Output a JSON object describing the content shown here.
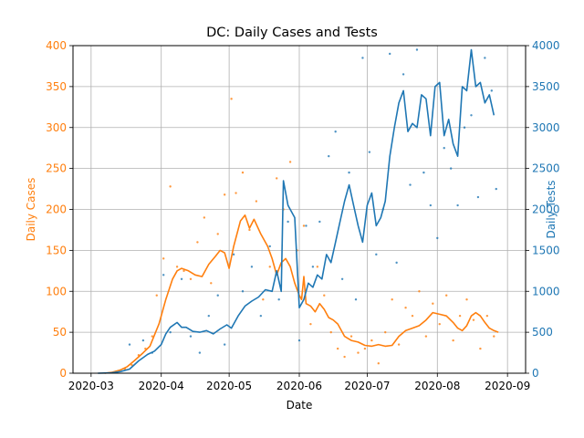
{
  "chart_data": {
    "type": "line",
    "title": "DC: Daily Cases and Tests",
    "xlabel": "Date",
    "ylabel_left": "Daily Cases",
    "ylabel_right": "Daily Tests",
    "x_ticks": [
      "2020-03",
      "2020-04",
      "2020-05",
      "2020-06",
      "2020-07",
      "2020-08",
      "2020-09"
    ],
    "x_range": [
      "2020-02-22",
      "2020-09-09"
    ],
    "ylim_left": [
      0,
      400
    ],
    "ylim_right": [
      0,
      4000
    ],
    "yticks_left": [
      0,
      50,
      100,
      150,
      200,
      250,
      300,
      350,
      400
    ],
    "yticks_right": [
      0,
      500,
      1000,
      1500,
      2000,
      2500,
      3000,
      3500,
      4000
    ],
    "grid": true,
    "colors": {
      "cases": "#ff7f0e",
      "tests": "#1f77b4"
    },
    "series": [
      {
        "axis": "left",
        "style": "smoothed line with daily scatter",
        "smoothed": [
          [
            "2020-03-07",
            0
          ],
          [
            "2020-03-10",
            1
          ],
          [
            "2020-03-14",
            4
          ],
          [
            "2020-03-17",
            8
          ],
          [
            "2020-03-20",
            15
          ],
          [
            "2020-03-24",
            25
          ],
          [
            "2020-03-27",
            33
          ],
          [
            "2020-03-31",
            60
          ],
          [
            "2020-04-03",
            90
          ],
          [
            "2020-04-06",
            115
          ],
          [
            "2020-04-08",
            125
          ],
          [
            "2020-04-10",
            128
          ],
          [
            "2020-04-13",
            125
          ],
          [
            "2020-04-16",
            120
          ],
          [
            "2020-04-19",
            118
          ],
          [
            "2020-04-22",
            133
          ],
          [
            "2020-04-25",
            143
          ],
          [
            "2020-04-27",
            150
          ],
          [
            "2020-04-29",
            147
          ],
          [
            "2020-05-01",
            128
          ],
          [
            "2020-05-03",
            155
          ],
          [
            "2020-05-06",
            186
          ],
          [
            "2020-05-08",
            193
          ],
          [
            "2020-05-10",
            177
          ],
          [
            "2020-05-12",
            188
          ],
          [
            "2020-05-15",
            170
          ],
          [
            "2020-05-18",
            155
          ],
          [
            "2020-05-20",
            140
          ],
          [
            "2020-05-22",
            120
          ],
          [
            "2020-05-24",
            135
          ],
          [
            "2020-05-26",
            140
          ],
          [
            "2020-05-28",
            130
          ],
          [
            "2020-05-30",
            110
          ],
          [
            "2020-06-01",
            95
          ],
          [
            "2020-06-02",
            90
          ],
          [
            "2020-06-03",
            118
          ],
          [
            "2020-06-04",
            85
          ],
          [
            "2020-06-06",
            82
          ],
          [
            "2020-06-08",
            75
          ],
          [
            "2020-06-10",
            85
          ],
          [
            "2020-06-12",
            78
          ],
          [
            "2020-06-14",
            68
          ],
          [
            "2020-06-16",
            65
          ],
          [
            "2020-06-18",
            60
          ],
          [
            "2020-06-21",
            45
          ],
          [
            "2020-06-24",
            40
          ],
          [
            "2020-06-27",
            38
          ],
          [
            "2020-06-30",
            34
          ],
          [
            "2020-07-03",
            33
          ],
          [
            "2020-07-06",
            35
          ],
          [
            "2020-07-09",
            33
          ],
          [
            "2020-07-12",
            34
          ],
          [
            "2020-07-15",
            45
          ],
          [
            "2020-07-18",
            52
          ],
          [
            "2020-07-21",
            55
          ],
          [
            "2020-07-24",
            58
          ],
          [
            "2020-07-27",
            65
          ],
          [
            "2020-07-30",
            74
          ],
          [
            "2020-08-02",
            72
          ],
          [
            "2020-08-05",
            70
          ],
          [
            "2020-08-08",
            62
          ],
          [
            "2020-08-10",
            55
          ],
          [
            "2020-08-12",
            52
          ],
          [
            "2020-08-14",
            58
          ],
          [
            "2020-08-16",
            70
          ],
          [
            "2020-08-18",
            74
          ],
          [
            "2020-08-20",
            70
          ],
          [
            "2020-08-22",
            62
          ],
          [
            "2020-08-24",
            55
          ],
          [
            "2020-08-26",
            52
          ],
          [
            "2020-08-28",
            50
          ]
        ],
        "daily": [
          [
            "2020-03-12",
            2
          ],
          [
            "2020-03-16",
            5
          ],
          [
            "2020-03-19",
            10
          ],
          [
            "2020-03-22",
            22
          ],
          [
            "2020-03-25",
            30
          ],
          [
            "2020-03-28",
            45
          ],
          [
            "2020-03-30",
            95
          ],
          [
            "2020-04-02",
            140
          ],
          [
            "2020-04-05",
            228
          ],
          [
            "2020-04-08",
            130
          ],
          [
            "2020-04-11",
            125
          ],
          [
            "2020-04-14",
            115
          ],
          [
            "2020-04-17",
            160
          ],
          [
            "2020-04-20",
            190
          ],
          [
            "2020-04-23",
            110
          ],
          [
            "2020-04-26",
            170
          ],
          [
            "2020-04-29",
            218
          ],
          [
            "2020-05-02",
            335
          ],
          [
            "2020-05-04",
            220
          ],
          [
            "2020-05-07",
            245
          ],
          [
            "2020-05-10",
            175
          ],
          [
            "2020-05-13",
            210
          ],
          [
            "2020-05-16",
            90
          ],
          [
            "2020-05-19",
            130
          ],
          [
            "2020-05-22",
            238
          ],
          [
            "2020-05-25",
            200
          ],
          [
            "2020-05-28",
            258
          ],
          [
            "2020-05-31",
            150
          ],
          [
            "2020-06-03",
            180
          ],
          [
            "2020-06-06",
            60
          ],
          [
            "2020-06-09",
            130
          ],
          [
            "2020-06-12",
            95
          ],
          [
            "2020-06-15",
            50
          ],
          [
            "2020-06-18",
            30
          ],
          [
            "2020-06-21",
            20
          ],
          [
            "2020-06-24",
            45
          ],
          [
            "2020-06-27",
            25
          ],
          [
            "2020-06-30",
            30
          ],
          [
            "2020-07-03",
            40
          ],
          [
            "2020-07-06",
            12
          ],
          [
            "2020-07-09",
            50
          ],
          [
            "2020-07-12",
            90
          ],
          [
            "2020-07-15",
            35
          ],
          [
            "2020-07-18",
            80
          ],
          [
            "2020-07-21",
            70
          ],
          [
            "2020-07-24",
            100
          ],
          [
            "2020-07-27",
            45
          ],
          [
            "2020-07-30",
            85
          ],
          [
            "2020-08-02",
            60
          ],
          [
            "2020-08-05",
            95
          ],
          [
            "2020-08-08",
            40
          ],
          [
            "2020-08-11",
            70
          ],
          [
            "2020-08-14",
            90
          ],
          [
            "2020-08-17",
            65
          ],
          [
            "2020-08-20",
            30
          ],
          [
            "2020-08-23",
            70
          ],
          [
            "2020-08-26",
            45
          ]
        ]
      },
      {
        "axis": "right",
        "style": "smoothed line with daily scatter",
        "smoothed": [
          [
            "2020-03-04",
            0
          ],
          [
            "2020-03-10",
            5
          ],
          [
            "2020-03-14",
            20
          ],
          [
            "2020-03-18",
            50
          ],
          [
            "2020-03-22",
            150
          ],
          [
            "2020-03-26",
            230
          ],
          [
            "2020-03-29",
            270
          ],
          [
            "2020-04-01",
            350
          ],
          [
            "2020-04-03",
            480
          ],
          [
            "2020-04-05",
            560
          ],
          [
            "2020-04-08",
            620
          ],
          [
            "2020-04-10",
            560
          ],
          [
            "2020-04-12",
            560
          ],
          [
            "2020-04-15",
            510
          ],
          [
            "2020-04-18",
            500
          ],
          [
            "2020-04-21",
            520
          ],
          [
            "2020-04-24",
            480
          ],
          [
            "2020-04-27",
            540
          ],
          [
            "2020-04-30",
            590
          ],
          [
            "2020-05-02",
            550
          ],
          [
            "2020-05-05",
            700
          ],
          [
            "2020-05-08",
            820
          ],
          [
            "2020-05-11",
            880
          ],
          [
            "2020-05-14",
            930
          ],
          [
            "2020-05-17",
            1020
          ],
          [
            "2020-05-20",
            1000
          ],
          [
            "2020-05-22",
            1250
          ],
          [
            "2020-05-24",
            1000
          ],
          [
            "2020-05-25",
            2350
          ],
          [
            "2020-05-27",
            2050
          ],
          [
            "2020-05-30",
            1900
          ],
          [
            "2020-06-01",
            800
          ],
          [
            "2020-06-03",
            900
          ],
          [
            "2020-06-05",
            1100
          ],
          [
            "2020-06-07",
            1050
          ],
          [
            "2020-06-09",
            1200
          ],
          [
            "2020-06-11",
            1150
          ],
          [
            "2020-06-13",
            1450
          ],
          [
            "2020-06-15",
            1350
          ],
          [
            "2020-06-17",
            1600
          ],
          [
            "2020-06-19",
            1850
          ],
          [
            "2020-06-21",
            2100
          ],
          [
            "2020-06-23",
            2300
          ],
          [
            "2020-06-25",
            2050
          ],
          [
            "2020-06-27",
            1800
          ],
          [
            "2020-06-29",
            1600
          ],
          [
            "2020-07-01",
            2050
          ],
          [
            "2020-07-03",
            2200
          ],
          [
            "2020-07-05",
            1800
          ],
          [
            "2020-07-07",
            1900
          ],
          [
            "2020-07-09",
            2100
          ],
          [
            "2020-07-11",
            2650
          ],
          [
            "2020-07-13",
            3000
          ],
          [
            "2020-07-15",
            3300
          ],
          [
            "2020-07-17",
            3450
          ],
          [
            "2020-07-19",
            2950
          ],
          [
            "2020-07-21",
            3050
          ],
          [
            "2020-07-23",
            3000
          ],
          [
            "2020-07-25",
            3400
          ],
          [
            "2020-07-27",
            3350
          ],
          [
            "2020-07-29",
            2900
          ],
          [
            "2020-07-31",
            3500
          ],
          [
            "2020-08-02",
            3550
          ],
          [
            "2020-08-04",
            2900
          ],
          [
            "2020-08-06",
            3100
          ],
          [
            "2020-08-08",
            2800
          ],
          [
            "2020-08-10",
            2650
          ],
          [
            "2020-08-12",
            3500
          ],
          [
            "2020-08-14",
            3450
          ],
          [
            "2020-08-16",
            3950
          ],
          [
            "2020-08-18",
            3500
          ],
          [
            "2020-08-20",
            3550
          ],
          [
            "2020-08-22",
            3300
          ],
          [
            "2020-08-24",
            3400
          ],
          [
            "2020-08-26",
            3150
          ]
        ],
        "daily": [
          [
            "2020-03-18",
            350
          ],
          [
            "2020-03-24",
            400
          ],
          [
            "2020-03-28",
            250
          ],
          [
            "2020-04-02",
            1200
          ],
          [
            "2020-04-05",
            500
          ],
          [
            "2020-04-10",
            1150
          ],
          [
            "2020-04-14",
            450
          ],
          [
            "2020-04-18",
            250
          ],
          [
            "2020-04-22",
            700
          ],
          [
            "2020-04-26",
            950
          ],
          [
            "2020-04-29",
            350
          ],
          [
            "2020-05-03",
            1450
          ],
          [
            "2020-05-07",
            1000
          ],
          [
            "2020-05-11",
            1300
          ],
          [
            "2020-05-15",
            700
          ],
          [
            "2020-05-19",
            1550
          ],
          [
            "2020-05-23",
            900
          ],
          [
            "2020-05-27",
            1850
          ],
          [
            "2020-06-01",
            400
          ],
          [
            "2020-06-04",
            1800
          ],
          [
            "2020-06-07",
            1300
          ],
          [
            "2020-06-10",
            1850
          ],
          [
            "2020-06-14",
            2650
          ],
          [
            "2020-06-17",
            2950
          ],
          [
            "2020-06-20",
            1150
          ],
          [
            "2020-06-23",
            2450
          ],
          [
            "2020-06-26",
            900
          ],
          [
            "2020-06-29",
            3850
          ],
          [
            "2020-07-02",
            2700
          ],
          [
            "2020-07-05",
            1450
          ],
          [
            "2020-07-08",
            2000
          ],
          [
            "2020-07-11",
            3900
          ],
          [
            "2020-07-14",
            1350
          ],
          [
            "2020-07-17",
            3650
          ],
          [
            "2020-07-20",
            2300
          ],
          [
            "2020-07-23",
            3950
          ],
          [
            "2020-07-26",
            2450
          ],
          [
            "2020-07-29",
            2050
          ],
          [
            "2020-08-01",
            1650
          ],
          [
            "2020-08-04",
            2750
          ],
          [
            "2020-08-07",
            2500
          ],
          [
            "2020-08-10",
            2050
          ],
          [
            "2020-08-13",
            3000
          ],
          [
            "2020-08-16",
            3150
          ],
          [
            "2020-08-19",
            2150
          ],
          [
            "2020-08-22",
            3850
          ],
          [
            "2020-08-25",
            3450
          ],
          [
            "2020-08-27",
            2250
          ]
        ]
      }
    ]
  }
}
